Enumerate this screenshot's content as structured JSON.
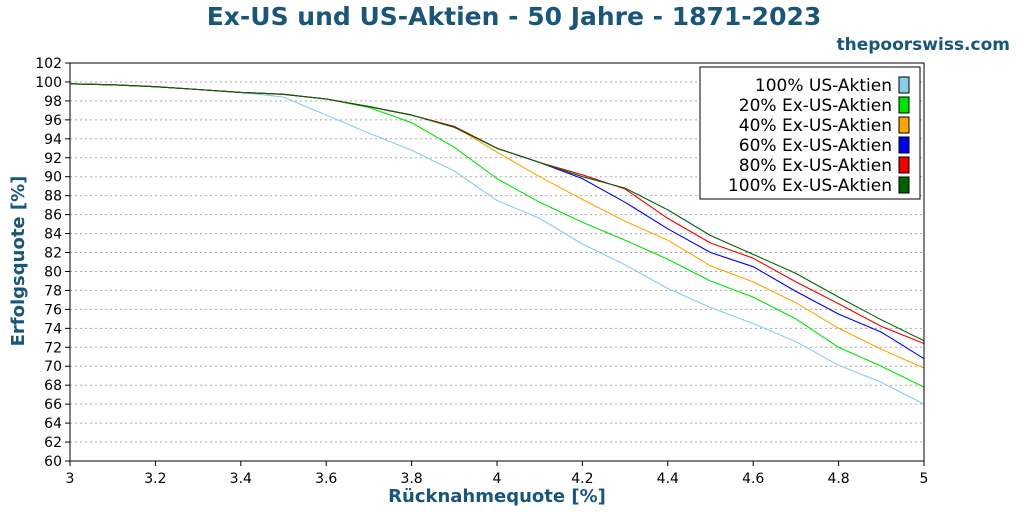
{
  "chart_data": {
    "type": "line",
    "title": "Ex-US und US-Aktien - 50 Jahre - 1871-2023",
    "site": "thepoorswiss.com",
    "xlabel": "Rücknahmequote [%]",
    "ylabel": "Erfolgsquote [%]",
    "xlim": [
      3,
      5
    ],
    "ylim": [
      60,
      102
    ],
    "xticks": [
      3,
      3.2,
      3.4,
      3.6,
      3.8,
      4,
      4.2,
      4.4,
      4.6,
      4.8,
      5
    ],
    "xtick_labels": [
      "3",
      "3.2",
      "3.4",
      "3.6",
      "3.8",
      "4",
      "4.2",
      "4.4",
      "4.6",
      "4.8",
      "5"
    ],
    "yticks": [
      60,
      62,
      64,
      66,
      68,
      70,
      72,
      74,
      76,
      78,
      80,
      82,
      84,
      86,
      88,
      90,
      92,
      94,
      96,
      98,
      100,
      102
    ],
    "ytick_labels": [
      "60",
      "62",
      "64",
      "66",
      "68",
      "70",
      "72",
      "74",
      "76",
      "78",
      "80",
      "82",
      "84",
      "86",
      "88",
      "90",
      "92",
      "94",
      "96",
      "98",
      "100",
      "102"
    ],
    "grid": "horizontal-dotted",
    "legend_position": "top-right",
    "x": [
      3.0,
      3.1,
      3.2,
      3.3,
      3.4,
      3.5,
      3.6,
      3.7,
      3.8,
      3.9,
      4.0,
      4.1,
      4.2,
      4.3,
      4.4,
      4.5,
      4.6,
      4.7,
      4.8,
      4.9,
      5.0
    ],
    "series": [
      {
        "name": "100% US-Aktien",
        "color": "#87ceeb",
        "values": [
          99.8,
          99.7,
          99.5,
          99.2,
          98.9,
          98.4,
          96.5,
          94.6,
          92.8,
          90.6,
          87.5,
          85.6,
          82.9,
          80.7,
          78.2,
          76.2,
          74.5,
          72.6,
          70.1,
          68.3,
          66.0
        ]
      },
      {
        "name": "20% Ex-US-Aktien",
        "color": "#00e400",
        "values": [
          99.8,
          99.7,
          99.5,
          99.2,
          98.9,
          98.7,
          98.2,
          97.3,
          95.7,
          93.1,
          89.8,
          87.3,
          85.2,
          83.3,
          81.3,
          79.0,
          77.3,
          75.0,
          72.0,
          70.0,
          67.8
        ]
      },
      {
        "name": "40% Ex-US-Aktien",
        "color": "#ffa500",
        "values": [
          99.8,
          99.7,
          99.5,
          99.2,
          98.9,
          98.7,
          98.2,
          97.4,
          96.5,
          95.3,
          92.6,
          90.0,
          87.6,
          85.3,
          83.3,
          80.6,
          78.9,
          76.7,
          74.0,
          71.8,
          69.8
        ]
      },
      {
        "name": "60% Ex-US-Aktien",
        "color": "#0000ee",
        "values": [
          99.8,
          99.7,
          99.5,
          99.2,
          98.9,
          98.7,
          98.2,
          97.4,
          96.5,
          95.3,
          93.0,
          91.5,
          89.8,
          87.3,
          84.5,
          82.0,
          80.5,
          77.9,
          75.5,
          73.6,
          70.8
        ]
      },
      {
        "name": "80% Ex-US-Aktien",
        "color": "#ee0000",
        "values": [
          99.8,
          99.7,
          99.5,
          99.2,
          98.9,
          98.7,
          98.2,
          97.4,
          96.5,
          95.3,
          93.0,
          91.5,
          90.2,
          88.7,
          85.6,
          83.0,
          81.4,
          78.9,
          76.6,
          74.2,
          72.4
        ]
      },
      {
        "name": "100% Ex-US-Aktien",
        "color": "#006400",
        "values": [
          99.8,
          99.7,
          99.5,
          99.2,
          98.9,
          98.7,
          98.2,
          97.4,
          96.5,
          95.2,
          93.0,
          91.5,
          90.0,
          88.8,
          86.5,
          83.8,
          81.8,
          79.8,
          77.3,
          74.9,
          72.7
        ]
      }
    ]
  }
}
